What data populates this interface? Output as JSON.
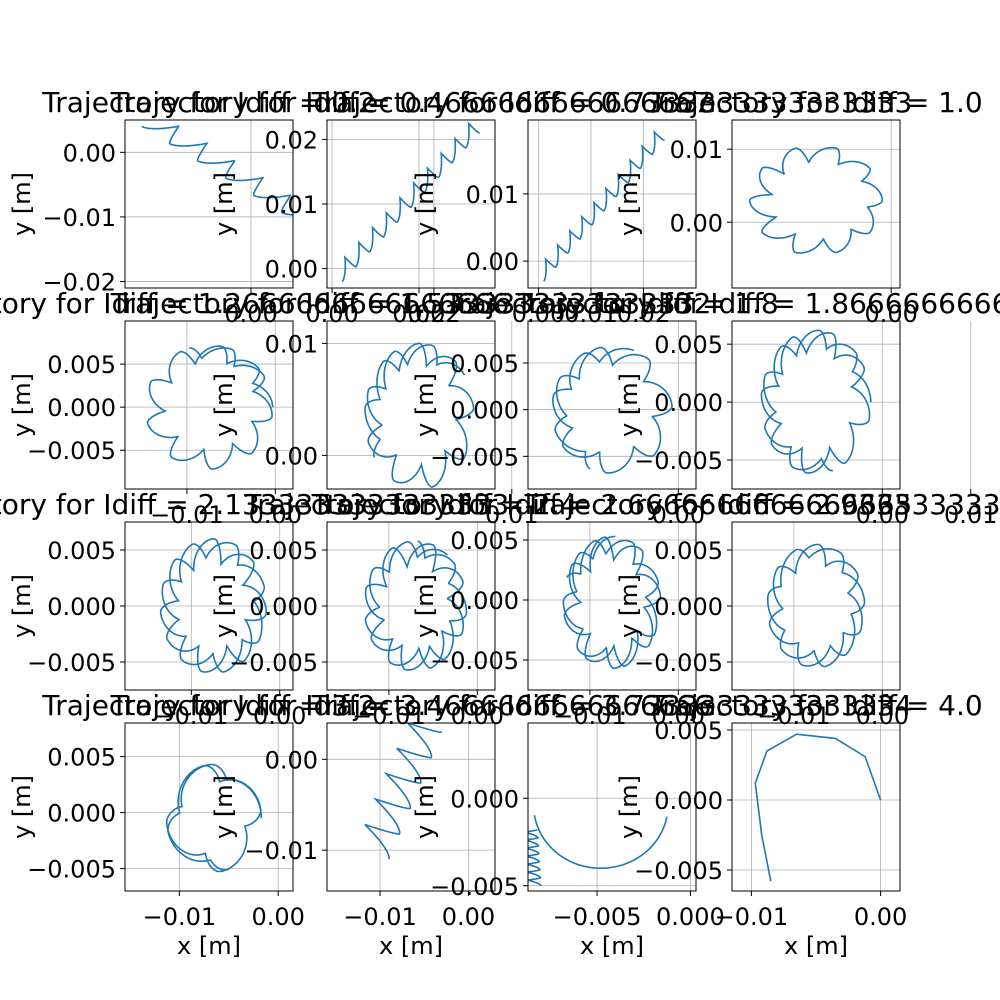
{
  "figure": {
    "line_color": "#1f77b4",
    "grid_color": "#b0b0b0",
    "xlabel": "x [m]",
    "ylabel": "y [m]"
  },
  "chart_data": [
    {
      "type": "line",
      "title": "Trajectory for Idiff = 0.2",
      "xlim": [
        -0.015,
        0.005
      ],
      "ylim": [
        -0.021,
        0.005
      ],
      "xticks": [
        "0.00",
        "0.02"
      ],
      "yticks": [
        "0.00",
        "−0.01",
        "−0.02"
      ],
      "series": [
        {
          "shape": "spiral",
          "x_start": -0.013,
          "y_start": 0.004,
          "x_end": 0.017,
          "y_end": -0.02,
          "lobes": 9,
          "amp": 0.0028
        }
      ]
    },
    {
      "type": "line",
      "title": "Trajectory for Idiff = 0.4666666666666667",
      "xlim": [
        -0.001,
        0.032
      ],
      "ylim": [
        -0.003,
        0.023
      ],
      "xticks": [
        "0.00",
        "0.02"
      ],
      "yticks": [
        "0.02",
        "0.01",
        "0.00"
      ],
      "series": [
        {
          "shape": "spiral",
          "x_start": 0.002,
          "y_start": -0.002,
          "x_end": 0.029,
          "y_end": 0.021,
          "lobes": 10,
          "amp": 0.0025
        }
      ]
    },
    {
      "type": "line",
      "title": "Trajectory for Idiff = 0.7333333333333333",
      "xlim": [
        -0.002,
        0.03
      ],
      "ylim": [
        -0.004,
        0.021
      ],
      "xticks": [
        "0.00",
        "0.01",
        "0.02"
      ],
      "yticks": [
        "0.01",
        "0.00"
      ],
      "series": [
        {
          "shape": "spiral",
          "x_start": 0.001,
          "y_start": -0.003,
          "x_end": 0.024,
          "y_end": 0.018,
          "lobes": 10,
          "amp": 0.0022
        }
      ]
    },
    {
      "type": "line",
      "title": "Trajectory for Idiff = 1.0",
      "xlim": [
        -0.018,
        0.001
      ],
      "ylim": [
        -0.009,
        0.014
      ],
      "xticks": [
        "0.00"
      ],
      "yticks": [
        "0.01",
        "0.00"
      ],
      "series": [
        {
          "shape": "petal",
          "cx": -0.0085,
          "cy": 0.003,
          "R": 0.0075,
          "loops": 1.0,
          "lobes": 10,
          "amp": 0.0025,
          "phase": 0.0
        }
      ]
    },
    {
      "type": "line",
      "title": "Trajectory for Idiff = 1.2666666666666666",
      "xlim": [
        -0.017,
        0.002
      ],
      "ylim": [
        -0.0095,
        0.01
      ],
      "xticks": [
        "−0.01",
        "0.00"
      ],
      "yticks": [
        "0.005",
        "0.000",
        "−0.005"
      ],
      "series": [
        {
          "shape": "petal",
          "cx": -0.0075,
          "cy": 0.0,
          "R": 0.0072,
          "loops": 1.3,
          "lobes": 12,
          "amp": 0.0023,
          "phase": 0.0
        }
      ]
    },
    {
      "type": "line",
      "title": "Trajectory for Idiff = 1.5333333333333332",
      "xlim": [
        -0.012,
        0.008
      ],
      "ylim": [
        -0.003,
        0.012
      ],
      "xticks": [
        "0.01"
      ],
      "yticks": [
        "0.01",
        "0.00"
      ],
      "series": [
        {
          "shape": "petal",
          "cx": -0.001,
          "cy": 0.0035,
          "R": 0.0065,
          "loops": 1.5,
          "lobes": 13,
          "amp": 0.0022,
          "phase": 0.6
        }
      ]
    },
    {
      "type": "line",
      "title": "Trajectory for Idiff = 1.8",
      "xlim": [
        -0.017,
        0.002
      ],
      "ylim": [
        -0.0085,
        0.0095
      ],
      "xticks": [
        "0.00"
      ],
      "yticks": [
        "0.005",
        "0.000",
        "−0.005"
      ],
      "series": [
        {
          "shape": "petal",
          "cx": -0.0075,
          "cy": 0.0,
          "R": 0.0068,
          "loops": 1.5,
          "lobes": 11,
          "amp": 0.0022,
          "phase": 1.2
        }
      ]
    },
    {
      "type": "line",
      "title": "Trajectory for Idiff = 1.8666666666666667",
      "xlim": [
        -0.017,
        0.002
      ],
      "ylim": [
        -0.0075,
        0.007
      ],
      "xticks": [
        "0.01",
        "0.00"
      ],
      "yticks": [
        "0.005",
        "0.000",
        "−0.005"
      ],
      "series": [
        {
          "shape": "petal",
          "cx": -0.0075,
          "cy": 0.0,
          "R": 0.0062,
          "loops": 1.8,
          "lobes": 15,
          "amp": 0.002,
          "phase": 0.0
        }
      ]
    },
    {
      "type": "line",
      "title": "Trajectory for Idiff = 2.1333333333333333",
      "xlim": [
        -0.0175,
        0.0015
      ],
      "ylim": [
        -0.0075,
        0.0075
      ],
      "xticks": [
        "−0.01",
        "0.00"
      ],
      "yticks": [
        "0.005",
        "0.000",
        "−0.005"
      ],
      "series": [
        {
          "shape": "petal",
          "cx": -0.0075,
          "cy": 0.0,
          "R": 0.006,
          "loops": 2.0,
          "lobes": 15,
          "amp": 0.0022,
          "phase": 0.3
        }
      ]
    },
    {
      "type": "line",
      "title": "Trajectory for Idiff = 2.4",
      "xlim": [
        -0.017,
        0.002
      ],
      "ylim": [
        -0.0075,
        0.0075
      ],
      "xticks": [
        "−0.01",
        "0.00"
      ],
      "yticks": [
        "0.005",
        "0.000",
        "−0.005"
      ],
      "series": [
        {
          "shape": "petal",
          "cx": -0.007,
          "cy": 0.0,
          "R": 0.0058,
          "loops": 2.1,
          "lobes": 16,
          "amp": 0.0022,
          "phase": 0.9
        }
      ]
    },
    {
      "type": "line",
      "title": "Trajectory for Idiff = 2.6666666666666665",
      "xlim": [
        -0.017,
        0.002
      ],
      "ylim": [
        -0.0075,
        0.0065
      ],
      "xticks": [
        "−0.01",
        "0.00"
      ],
      "yticks": [
        "0.005",
        "0.000",
        "−0.005"
      ],
      "series": [
        {
          "shape": "petal",
          "cx": -0.0075,
          "cy": -0.0002,
          "R": 0.0055,
          "loops": 2.2,
          "lobes": 17,
          "amp": 0.002,
          "phase": 1.5
        }
      ]
    },
    {
      "type": "line",
      "title": "Trajectory for Idiff = 2.933333333333333",
      "xlim": [
        -0.017,
        0.002
      ],
      "ylim": [
        -0.0075,
        0.0075
      ],
      "xticks": [
        "−0.01",
        "0.00"
      ],
      "yticks": [
        "0.005",
        "0.000",
        "−0.005"
      ],
      "series": [
        {
          "shape": "petal",
          "cx": -0.0075,
          "cy": 0.0,
          "R": 0.0055,
          "loops": 2.0,
          "lobes": 13,
          "amp": 0.0018,
          "phase": 2.0
        }
      ]
    },
    {
      "type": "line",
      "title": "Trajectory for Idiff = 3.2",
      "xlim": [
        -0.0155,
        0.0015
      ],
      "ylim": [
        -0.007,
        0.008
      ],
      "xticks": [
        "−0.01",
        "0.00"
      ],
      "yticks": [
        "0.005",
        "0.000",
        "−0.005"
      ],
      "series": [
        {
          "shape": "petal",
          "cx": -0.0065,
          "cy": -0.0005,
          "R": 0.0048,
          "loops": 1.8,
          "lobes": 7,
          "amp": 0.0016,
          "phase": 0.0
        }
      ]
    },
    {
      "type": "line",
      "title": "Trajectory for Idiff = 3.4666666666666666",
      "xlim": [
        -0.016,
        0.003
      ],
      "ylim": [
        -0.0145,
        0.004
      ],
      "xticks": [
        "−0.01",
        "0.00"
      ],
      "yticks": [
        "0.00",
        "−0.01"
      ],
      "series": [
        {
          "shape": "spiral",
          "x_start": -0.009,
          "y_start": -0.011,
          "x_end": -0.003,
          "y_end": 0.003,
          "lobes": 5,
          "amp": 0.004
        }
      ]
    },
    {
      "type": "line",
      "title": "Trajectory for Idiff = 3.7333333333333334",
      "xlim": [
        -0.0087,
        0.0003
      ],
      "ylim": [
        -0.0053,
        0.0043
      ],
      "xticks": [
        "−0.005",
        "0.000"
      ],
      "yticks": [
        "0.000",
        "−0.005"
      ],
      "series": [
        {
          "shape": "spiral",
          "x_start": -0.008,
          "y_start": -0.005,
          "x_end": -0.0082,
          "y_end": -0.0018,
          "lobes": 7,
          "amp": 0.0007
        },
        {
          "shape": "arc",
          "cx": -0.0048,
          "cy": -0.0004,
          "r": 0.0036,
          "a0": 3.3,
          "a1": 6.1
        }
      ]
    },
    {
      "type": "line",
      "title": "Trajectory for Idiff = 4.0",
      "xlim": [
        -0.0115,
        0.0015
      ],
      "ylim": [
        -0.0065,
        0.0055
      ],
      "xticks": [
        "−0.01",
        "0.00"
      ],
      "yticks": [
        "0.005",
        "0.000",
        "−0.005"
      ],
      "series": [
        {
          "shape": "hook",
          "pts": [
            [
              -0.0085,
              -0.0058
            ],
            [
              -0.0092,
              -0.0025
            ],
            [
              -0.0097,
              0.0012
            ],
            [
              -0.0088,
              0.0035
            ],
            [
              -0.0065,
              0.0047
            ],
            [
              -0.0035,
              0.0044
            ],
            [
              -0.0012,
              0.0031
            ],
            [
              0.0,
              0.0
            ]
          ]
        }
      ]
    }
  ]
}
